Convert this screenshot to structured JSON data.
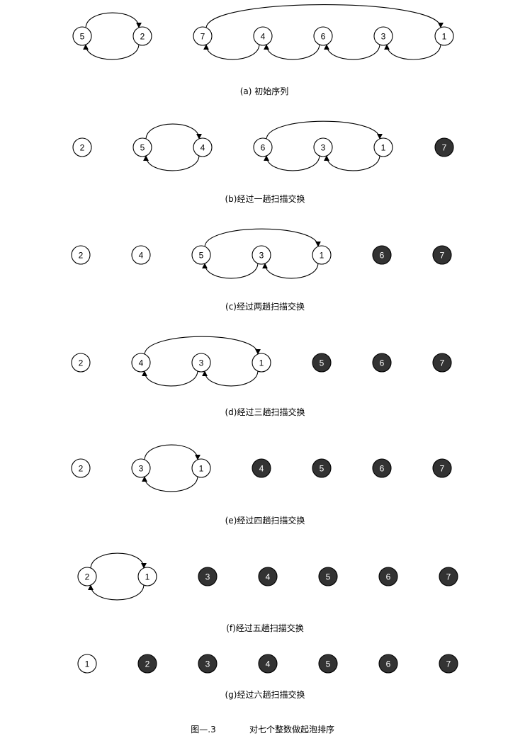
{
  "figure_caption": {
    "label": "图—.3",
    "text": "对七个整数做起泡排序"
  },
  "panels": [
    {
      "caption": "(a)  初始序列",
      "nodes": [
        {
          "label": "5",
          "dark": false
        },
        {
          "label": "2",
          "dark": false
        },
        {
          "label": "7",
          "dark": false
        },
        {
          "label": "4",
          "dark": false
        },
        {
          "label": "6",
          "dark": false
        },
        {
          "label": "3",
          "dark": false
        },
        {
          "label": "1",
          "dark": false
        }
      ]
    },
    {
      "caption": "(b)经过一趟扫描交换",
      "nodes": [
        {
          "label": "2",
          "dark": false
        },
        {
          "label": "5",
          "dark": false
        },
        {
          "label": "4",
          "dark": false
        },
        {
          "label": "6",
          "dark": false
        },
        {
          "label": "3",
          "dark": false
        },
        {
          "label": "1",
          "dark": false
        },
        {
          "label": "7",
          "dark": true
        }
      ]
    },
    {
      "caption": "(c)经过两趟扫描交换",
      "nodes": [
        {
          "label": "2",
          "dark": false
        },
        {
          "label": "4",
          "dark": false
        },
        {
          "label": "5",
          "dark": false
        },
        {
          "label": "3",
          "dark": false
        },
        {
          "label": "1",
          "dark": false
        },
        {
          "label": "6",
          "dark": true
        },
        {
          "label": "7",
          "dark": true
        }
      ]
    },
    {
      "caption": "(d)经过三趟扫描交换",
      "nodes": [
        {
          "label": "2",
          "dark": false
        },
        {
          "label": "4",
          "dark": false
        },
        {
          "label": "3",
          "dark": false
        },
        {
          "label": "1",
          "dark": false
        },
        {
          "label": "5",
          "dark": true
        },
        {
          "label": "6",
          "dark": true
        },
        {
          "label": "7",
          "dark": true
        }
      ]
    },
    {
      "caption": "(e)经过四趟扫描交换",
      "nodes": [
        {
          "label": "2",
          "dark": false
        },
        {
          "label": "3",
          "dark": false
        },
        {
          "label": "1",
          "dark": false
        },
        {
          "label": "4",
          "dark": true
        },
        {
          "label": "5",
          "dark": true
        },
        {
          "label": "6",
          "dark": true
        },
        {
          "label": "7",
          "dark": true
        }
      ]
    },
    {
      "caption": "(f)经过五趟扫描交换",
      "nodes": [
        {
          "label": "2",
          "dark": false
        },
        {
          "label": "1",
          "dark": false
        },
        {
          "label": "3",
          "dark": true
        },
        {
          "label": "4",
          "dark": true
        },
        {
          "label": "5",
          "dark": true
        },
        {
          "label": "6",
          "dark": true
        },
        {
          "label": "7",
          "dark": true
        }
      ]
    },
    {
      "caption": "(g)经过六趟扫描交换",
      "nodes": [
        {
          "label": "1",
          "dark": false
        },
        {
          "label": "2",
          "dark": true
        },
        {
          "label": "3",
          "dark": true
        },
        {
          "label": "4",
          "dark": true
        },
        {
          "label": "5",
          "dark": true
        },
        {
          "label": "6",
          "dark": true
        },
        {
          "label": "7",
          "dark": true
        }
      ]
    }
  ]
}
